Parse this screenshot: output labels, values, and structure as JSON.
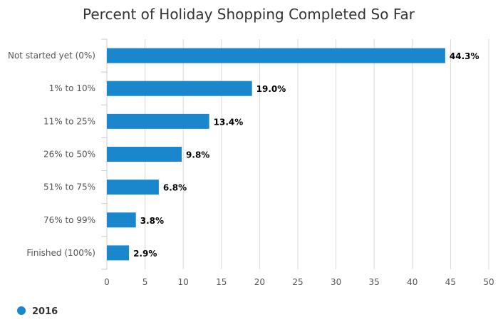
{
  "chart_data": {
    "type": "bar",
    "orientation": "horizontal",
    "title": "Percent of Holiday Shopping Completed So Far",
    "categories": [
      "Not started yet (0%)",
      "1% to 10%",
      "11% to 25%",
      "26% to 50%",
      "51% to 75%",
      "76% to 99%",
      "Finished (100%)"
    ],
    "series": [
      {
        "name": "2016",
        "values": [
          44.3,
          19.0,
          13.4,
          9.8,
          6.8,
          3.8,
          2.9
        ],
        "labels": [
          "44.3%",
          "19.0%",
          "13.4%",
          "9.8%",
          "6.8%",
          "3.8%",
          "2.9%"
        ],
        "color": "#1a87cc"
      }
    ],
    "xlim": [
      0,
      50
    ],
    "xticks": [
      0,
      5,
      10,
      15,
      20,
      25,
      30,
      35,
      40,
      45,
      50
    ],
    "xtick_labels": [
      "0",
      "5",
      "10",
      "15",
      "20",
      "25",
      "30",
      "35",
      "40",
      "45",
      "50"
    ],
    "grid": "vertical",
    "legend": "bottom-left",
    "colors": {
      "bar": "#1a87cc",
      "grid": "#d8d8d8",
      "axis": "#cccccc"
    }
  }
}
